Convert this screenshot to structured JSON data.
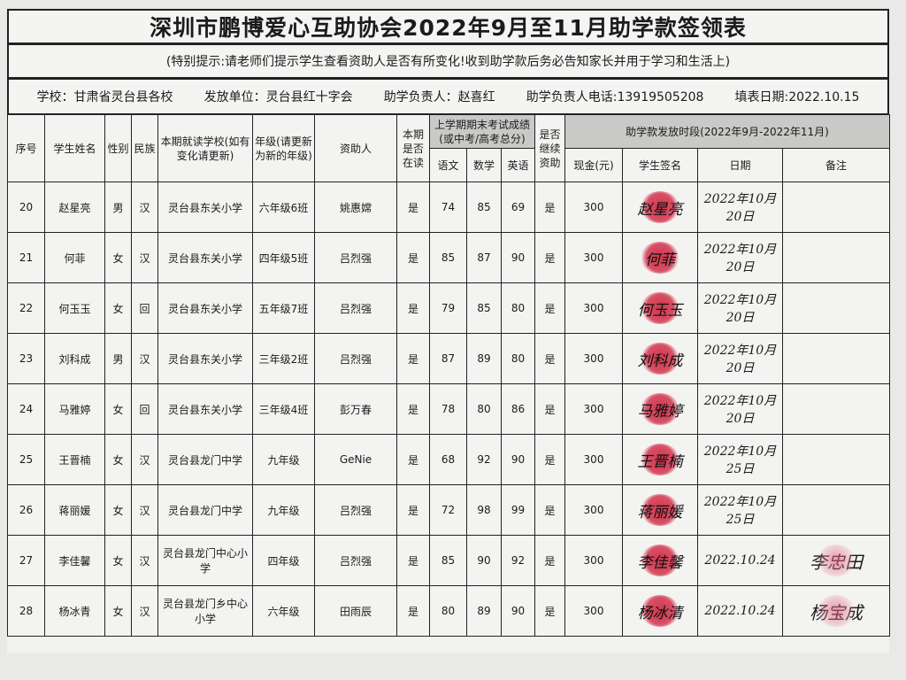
{
  "title": "深圳市鹏博爱心互助协会2022年9月至11月助学款签领表",
  "note": "(特别提示:请老师们提示学生查看资助人是否有所变化!收到助学款后务必告知家长并用于学习和生活上)",
  "info": {
    "school": "学校：甘肃省灵台县各校",
    "issuer": "发放单位：灵台县红十字会",
    "manager": "助学负责人：赵喜红",
    "phone": "助学负责人电话:13919505208",
    "fill_date": "填表日期:2022.10.15"
  },
  "headers": {
    "no": "序号",
    "name": "学生姓名",
    "gender": "性别",
    "ethnicity": "民族",
    "school": "本期就读学校(如有变化请更新)",
    "grade": "年级(请更新为新的年级)",
    "sponsor": "资助人",
    "enrolled": "本期是否在读",
    "scores": "上学期期末考试成绩(或中考/高考总分)",
    "chinese": "语文",
    "math": "数学",
    "english": "英语",
    "continue": "是否继续资助",
    "period": "助学款发放时段(2022年9月-2022年11月)",
    "cash": "现金(元)",
    "signature": "学生签名",
    "date": "日期",
    "remark": "备注"
  },
  "rows": [
    {
      "no": "20",
      "name": "赵星亮",
      "gender": "男",
      "eth": "汉",
      "school": "灵台县东关小学",
      "grade": "六年级6班",
      "sponsor": "姚惠嫦",
      "enrolled": "是",
      "chinese": "74",
      "math": "85",
      "english": "69",
      "cont": "是",
      "cash": "300",
      "sig": "赵星亮",
      "date": "2022年10月20日",
      "remark": ""
    },
    {
      "no": "21",
      "name": "何菲",
      "gender": "女",
      "eth": "汉",
      "school": "灵台县东关小学",
      "grade": "四年级5班",
      "sponsor": "吕烈强",
      "enrolled": "是",
      "chinese": "85",
      "math": "87",
      "english": "90",
      "cont": "是",
      "cash": "300",
      "sig": "何菲",
      "date": "2022年10月20日",
      "remark": ""
    },
    {
      "no": "22",
      "name": "何玉玉",
      "gender": "女",
      "eth": "回",
      "school": "灵台县东关小学",
      "grade": "五年级7班",
      "sponsor": "吕烈强",
      "enrolled": "是",
      "chinese": "79",
      "math": "85",
      "english": "80",
      "cont": "是",
      "cash": "300",
      "sig": "何玉玉",
      "date": "2022年10月20日",
      "remark": ""
    },
    {
      "no": "23",
      "name": "刘科成",
      "gender": "男",
      "eth": "汉",
      "school": "灵台县东关小学",
      "grade": "三年级2班",
      "sponsor": "吕烈强",
      "enrolled": "是",
      "chinese": "87",
      "math": "89",
      "english": "80",
      "cont": "是",
      "cash": "300",
      "sig": "刘科成",
      "date": "2022年10月20日",
      "remark": ""
    },
    {
      "no": "24",
      "name": "马雅婷",
      "gender": "女",
      "eth": "回",
      "school": "灵台县东关小学",
      "grade": "三年级4班",
      "sponsor": "彭万春",
      "enrolled": "是",
      "chinese": "78",
      "math": "80",
      "english": "86",
      "cont": "是",
      "cash": "300",
      "sig": "马雅婷",
      "date": "2022年10月20日",
      "remark": ""
    },
    {
      "no": "25",
      "name": "王晋楠",
      "gender": "女",
      "eth": "汉",
      "school": "灵台县龙门中学",
      "grade": "九年级",
      "sponsor": "GeNie",
      "enrolled": "是",
      "chinese": "68",
      "math": "92",
      "english": "90",
      "cont": "是",
      "cash": "300",
      "sig": "王晋楠",
      "date": "2022年10月25日",
      "remark": ""
    },
    {
      "no": "26",
      "name": "蒋丽媛",
      "gender": "女",
      "eth": "汉",
      "school": "灵台县龙门中学",
      "grade": "九年级",
      "sponsor": "吕烈强",
      "enrolled": "是",
      "chinese": "72",
      "math": "98",
      "english": "99",
      "cont": "是",
      "cash": "300",
      "sig": "蒋丽媛",
      "date": "2022年10月25日",
      "remark": ""
    },
    {
      "no": "27",
      "name": "李佳馨",
      "gender": "女",
      "eth": "汉",
      "school": "灵台县龙门中心小学",
      "grade": "四年级",
      "sponsor": "吕烈强",
      "enrolled": "是",
      "chinese": "85",
      "math": "90",
      "english": "92",
      "cont": "是",
      "cash": "300",
      "sig": "李佳馨",
      "date": "2022.10.24",
      "remark": "李忠田"
    },
    {
      "no": "28",
      "name": "杨冰青",
      "gender": "女",
      "eth": "汉",
      "school": "灵台县龙门乡中心小学",
      "grade": "六年级",
      "sponsor": "田雨辰",
      "enrolled": "是",
      "chinese": "80",
      "math": "89",
      "english": "90",
      "cont": "是",
      "cash": "300",
      "sig": "杨冰清",
      "date": "2022.10.24",
      "remark": "杨宝成"
    }
  ],
  "colors": {
    "ink": "#1b1b1b",
    "fingerprint": "#c8142e",
    "header_shade": "#c9c9c7"
  }
}
